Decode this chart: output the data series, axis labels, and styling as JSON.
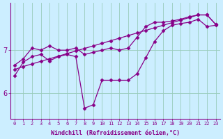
{
  "xlabel": "Windchill (Refroidissement éolien,°C)",
  "background_color": "#cceeff",
  "grid_color": "#99ccbb",
  "line_color": "#880088",
  "x_values": [
    0,
    1,
    2,
    3,
    4,
    5,
    6,
    7,
    8,
    9,
    10,
    11,
    12,
    13,
    14,
    15,
    16,
    17,
    18,
    19,
    20,
    21,
    22,
    23
  ],
  "line1_y": [
    6.55,
    6.62,
    6.68,
    6.74,
    6.8,
    6.86,
    6.92,
    6.98,
    7.04,
    7.1,
    7.16,
    7.22,
    7.28,
    7.34,
    7.4,
    7.46,
    7.52,
    7.58,
    7.64,
    7.7,
    7.76,
    7.82,
    7.82,
    7.6
  ],
  "line2_y": [
    6.65,
    6.8,
    7.05,
    7.0,
    7.1,
    7.0,
    7.0,
    7.05,
    6.9,
    6.95,
    7.0,
    7.05,
    7.0,
    7.05,
    7.3,
    7.55,
    7.65,
    7.65,
    7.68,
    7.72,
    7.78,
    7.82,
    7.82,
    7.6
  ],
  "line3_y": [
    6.4,
    6.72,
    6.85,
    6.9,
    6.75,
    6.85,
    6.9,
    6.85,
    5.65,
    5.73,
    6.3,
    6.3,
    6.3,
    6.3,
    6.45,
    6.82,
    7.2,
    7.45,
    7.58,
    7.62,
    7.65,
    7.72,
    7.55,
    7.58
  ],
  "ylim": [
    5.4,
    8.1
  ],
  "yticks": [
    6,
    7
  ],
  "xlim": [
    -0.5,
    23.5
  ]
}
